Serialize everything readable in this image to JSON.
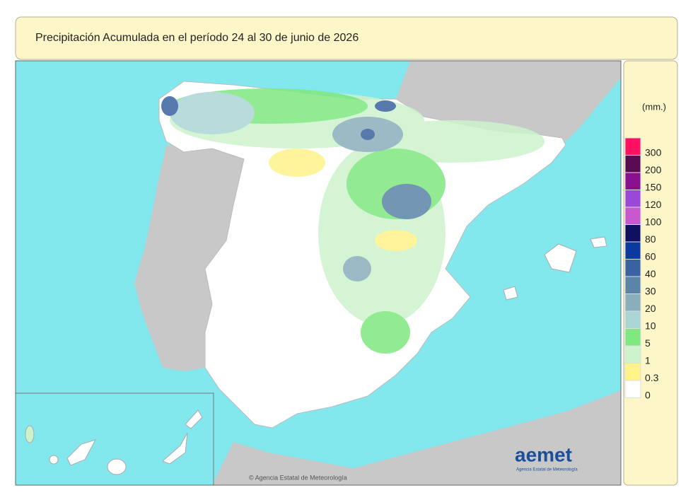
{
  "header": {
    "title": "Precipitación Acumulada en el período 24 al 30 de junio de 2026"
  },
  "legend": {
    "unit": "(mm.)",
    "items": [
      {
        "label": "300",
        "color": "#ff1060"
      },
      {
        "label": "200",
        "color": "#5a0a50"
      },
      {
        "label": "150",
        "color": "#8a1090"
      },
      {
        "label": "120",
        "color": "#9a48d8"
      },
      {
        "label": "100",
        "color": "#c858d0"
      },
      {
        "label": "80",
        "color": "#101060"
      },
      {
        "label": "60",
        "color": "#0a3aa0"
      },
      {
        "label": "40",
        "color": "#3a62a0"
      },
      {
        "label": "30",
        "color": "#5a84a8"
      },
      {
        "label": "20",
        "color": "#8aaebc"
      },
      {
        "label": "10",
        "color": "#acd6d6"
      },
      {
        "label": "5",
        "color": "#80e880"
      },
      {
        "label": "1",
        "color": "#cdf3cd"
      },
      {
        "label": "0.3",
        "color": "#fff38a"
      },
      {
        "label": "0",
        "color": "#ffffff"
      }
    ]
  },
  "map": {
    "credit": "© Agencia Estatal de Meteorología"
  },
  "logo": {
    "name": "aemet",
    "subtitle": "Agencia Estatal de Meteorología"
  }
}
